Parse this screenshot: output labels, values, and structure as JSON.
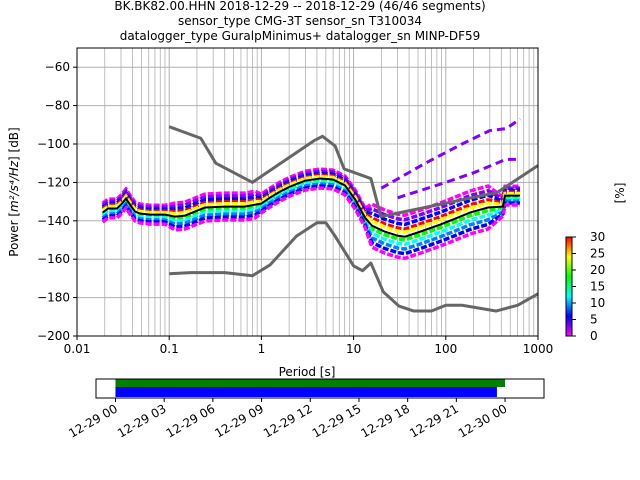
{
  "chart_data": {
    "type": "heatmap",
    "title_lines": [
      "BK.BK82.00.HHN   2018-12-29 -- 2018-12-29  (46/46 segments)",
      "sensor_type CMG-3T sensor_sn T310034",
      "datalogger_type GuralpMinimus+ datalogger_sn MINP-DF59"
    ],
    "xlabel": "Period [s]",
    "ylabel_main": "Power [",
    "ylabel_units": "m²/s⁴/Hz",
    "ylabel_tail": "] [dB]",
    "xscale": "log",
    "xlim": [
      0.01,
      1000
    ],
    "ylim": [
      -200,
      -50
    ],
    "xticks": [
      0.01,
      0.1,
      1,
      10,
      100,
      1000
    ],
    "xtick_labels": [
      "0.01",
      "0.1",
      "1",
      "10",
      "100",
      "1000"
    ],
    "yticks": [
      -60,
      -80,
      -100,
      -120,
      -140,
      -160,
      -180,
      -200
    ],
    "ytick_labels": [
      "−60",
      "−80",
      "−100",
      "−120",
      "−140",
      "−160",
      "−180",
      "−200"
    ],
    "grid": true,
    "mean_curve": {
      "period": [
        0.019,
        0.0217,
        0.0272,
        0.0308,
        0.034,
        0.0376,
        0.0426,
        0.0482,
        0.062,
        0.09,
        0.116,
        0.148,
        0.19,
        0.244,
        0.4,
        0.66,
        0.85,
        1.0,
        1.24,
        1.59,
        2.04,
        2.97,
        4.32,
        5.98,
        8.07,
        10.4,
        13.3,
        15.8,
        21.9,
        30.3,
        36,
        52.5,
        86.5,
        126,
        183,
        287,
        417,
        439,
        638
      ],
      "db": [
        -135.7,
        -133.6,
        -133.6,
        -131,
        -128.4,
        -131.6,
        -135.2,
        -136.2,
        -136.8,
        -136.8,
        -137.8,
        -137.3,
        -135.2,
        -133.1,
        -132.6,
        -132.6,
        -131.6,
        -131,
        -127.9,
        -124.8,
        -122.2,
        -119.1,
        -118,
        -118.5,
        -121.6,
        -128.9,
        -138.4,
        -142.5,
        -145.7,
        -147.8,
        -148.3,
        -145.7,
        -142,
        -138.9,
        -135.7,
        -133.1,
        -132.6,
        -126.9,
        -126.9
      ]
    },
    "nhnm": {
      "period": [
        0.1,
        0.22,
        0.32,
        0.8,
        3.8,
        4.6,
        6.3,
        7.9,
        15.4,
        19.8,
        359,
        1000
      ],
      "db": [
        -91,
        -97,
        -110,
        -120,
        -98,
        -96,
        -101,
        -113,
        -118,
        -137.8,
        -125.3,
        -111.2
      ]
    },
    "nlnm": {
      "period": [
        0.1,
        0.17,
        0.4,
        0.8,
        1.24,
        2.4,
        4.0,
        5.0,
        6.3,
        10,
        12.5,
        15.4,
        21,
        31,
        45,
        70,
        100,
        150,
        350,
        600,
        1000
      ],
      "db": [
        -167.6,
        -167,
        -167,
        -168.6,
        -163,
        -148,
        -141,
        -141,
        -148,
        -163.5,
        -166,
        -162,
        -177,
        -184.4,
        -187,
        -187,
        -184,
        -184,
        -187,
        -184,
        -178
      ]
    },
    "outlier_traces": [
      {
        "period": [
          20,
          60,
          150,
          300,
          450,
          640
        ],
        "db": [
          -123,
          -110,
          -100,
          -93,
          -92,
          -87
        ]
      },
      {
        "period": [
          30,
          100,
          200,
          450,
          640
        ],
        "db": [
          -128,
          -120,
          -115,
          -108,
          -108
        ]
      }
    ],
    "colorbar": {
      "label": "[%]",
      "range": [
        0,
        30
      ],
      "ticks": [
        0,
        5,
        10,
        15,
        20,
        25,
        30
      ],
      "tick_labels": [
        "0",
        "5",
        "10",
        "15",
        "20",
        "25",
        "30"
      ],
      "colormap": [
        "#ff00ff",
        "#8000ff",
        "#0000ff",
        "#0080ff",
        "#00ffff",
        "#00ff80",
        "#00ff00",
        "#80ff00",
        "#ffff00",
        "#ff8000",
        "#ff0000"
      ]
    },
    "time_coverage": {
      "tick_labels": [
        "12-29 00",
        "12-29 03",
        "12-29 06",
        "12-29 09",
        "12-29 12",
        "12-29 15",
        "12-29 18",
        "12-29 21",
        "12-30 00"
      ],
      "axis_range_hours": [
        -1.2,
        26.4
      ],
      "green_bar_hours": [
        0,
        24
      ],
      "blue_bar_hours": [
        0,
        23.5
      ],
      "green_color": "#008000",
      "blue_color": "#0000ff"
    }
  }
}
